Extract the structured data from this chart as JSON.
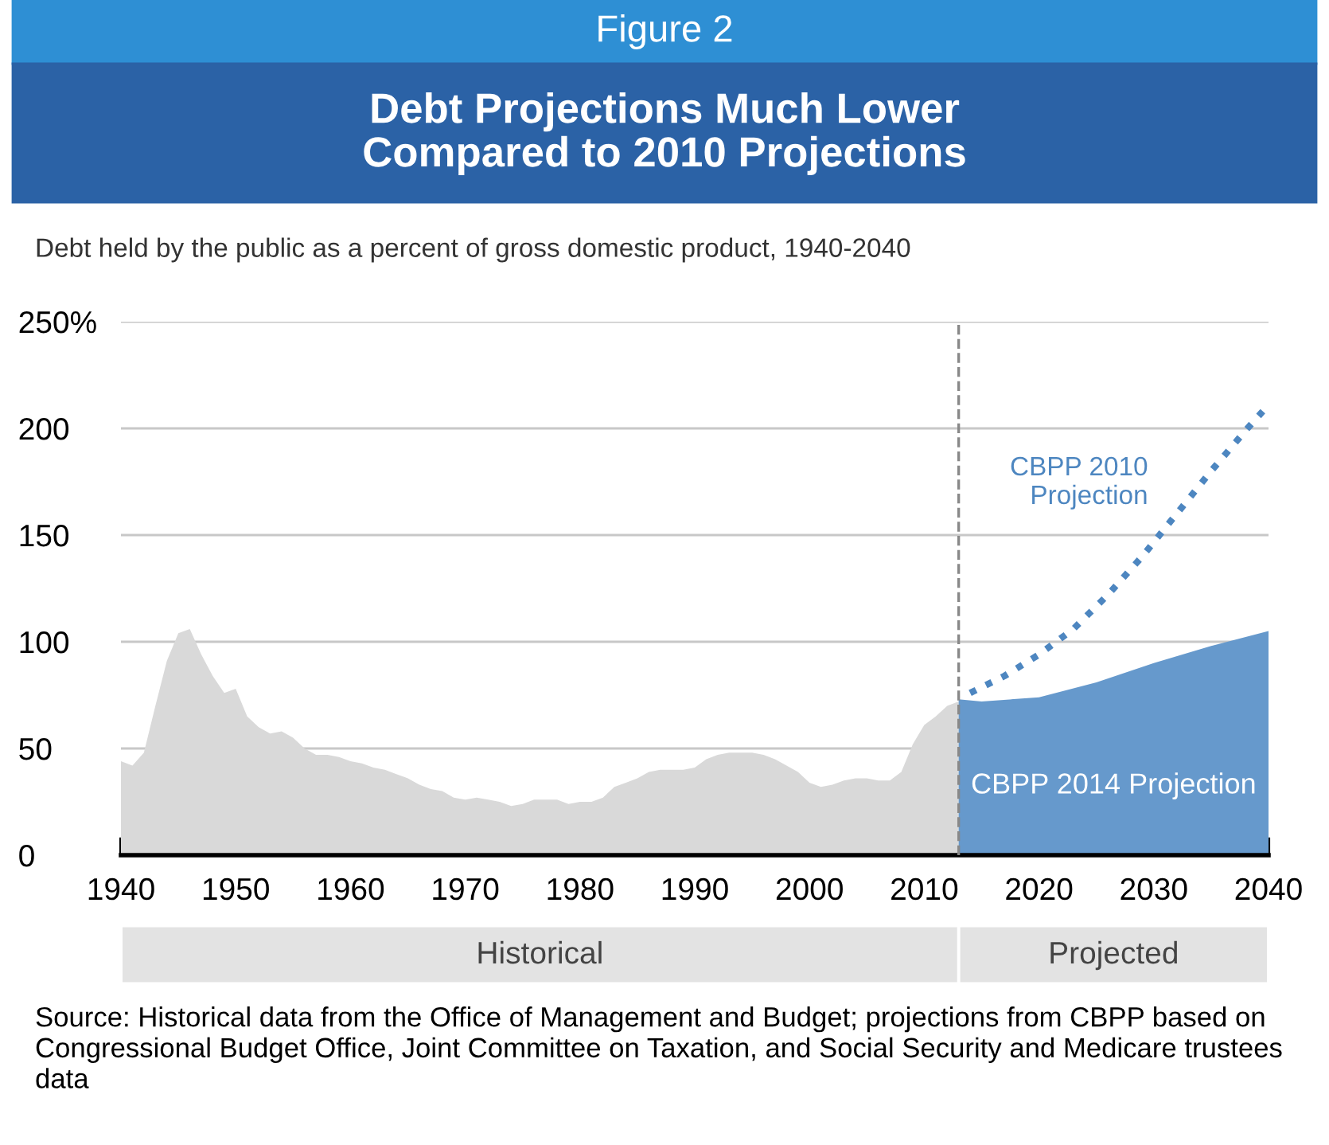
{
  "chart_data": {
    "type": "area",
    "title": "Debt Projections Much Lower\nCompared to 2010 Projections",
    "subtitle": "Debt held by the public as a percent of gross domestic product, 1940-2040",
    "annotations": [
      "Figure 2",
      "Historical",
      "Projected",
      "Source: Historical data from the Office of Management and Budget; projections from CBPP based on Congressional Budget Office, Joint Committee on Taxation, and Social Security and Medicare trustees data"
    ],
    "series": [
      {
        "color": "#d9d9d9",
        "x": [
          1940,
          1941,
          1942,
          1943,
          1944,
          1945,
          1946,
          1947,
          1948,
          1949,
          1950,
          1951,
          1952,
          1953,
          1954,
          1955,
          1956,
          1957,
          1958,
          1959,
          1960,
          1961,
          1962,
          1963,
          1964,
          1965,
          1966,
          1967,
          1968,
          1969,
          1970,
          1971,
          1972,
          1973,
          1974,
          1975,
          1976,
          1977,
          1978,
          1979,
          1980,
          1981,
          1982,
          1983,
          1984,
          1985,
          1986,
          1987,
          1988,
          1989,
          1990,
          1991,
          1992,
          1993,
          1994,
          1995,
          1996,
          1997,
          1998,
          1999,
          2000,
          2001,
          2002,
          2003,
          2004,
          2005,
          2006,
          2007,
          2008,
          2009,
          2010,
          2011,
          2012,
          2013
        ],
        "values": [
          44,
          42,
          48,
          70,
          91,
          104,
          106,
          94,
          84,
          76,
          78,
          65,
          60,
          57,
          58,
          55,
          50,
          47,
          47,
          46,
          44,
          43,
          41,
          40,
          38,
          36,
          33,
          31,
          30,
          27,
          26,
          27,
          26,
          25,
          23,
          24,
          26,
          26,
          26,
          24,
          25,
          25,
          27,
          32,
          34,
          36,
          39,
          40,
          40,
          40,
          41,
          45,
          47,
          48,
          48,
          48,
          47,
          45,
          42,
          39,
          34,
          32,
          33,
          35,
          36,
          36,
          35,
          35,
          39,
          52,
          61,
          65,
          70,
          72
        ]
      },
      {
        "name": "CBPP 2014 Projection",
        "color": "#6699cc",
        "x": [
          2013,
          2015,
          2020,
          2025,
          2030,
          2035,
          2040
        ],
        "values": [
          73,
          72,
          74,
          81,
          90,
          98,
          105
        ]
      },
      {
        "type": "line",
        "name": "CBPP 2010 Projection",
        "color": "#4d86c0",
        "line_style": "dotted",
        "x": [
          2014,
          2017,
          2020,
          2023,
          2026,
          2029,
          2032,
          2035,
          2038,
          2039.5
        ],
        "values": [
          76,
          84,
          94,
          106,
          122,
          140,
          160,
          180,
          199,
          208
        ]
      }
    ],
    "ref_lines": [
      {
        "axis": "x",
        "value": 2013,
        "color": "#888888",
        "line_style": "dashed"
      }
    ],
    "xlim": [
      1940,
      2040
    ],
    "xticks": [
      1940,
      1950,
      1960,
      1970,
      1980,
      1990,
      2000,
      2010,
      2020,
      2030,
      2040
    ],
    "ylim": [
      0,
      250
    ],
    "yticks": [
      0,
      50,
      100,
      150,
      200,
      {
        "value": 250,
        "label": "250%"
      }
    ],
    "grid": "y",
    "legend": false
  }
}
